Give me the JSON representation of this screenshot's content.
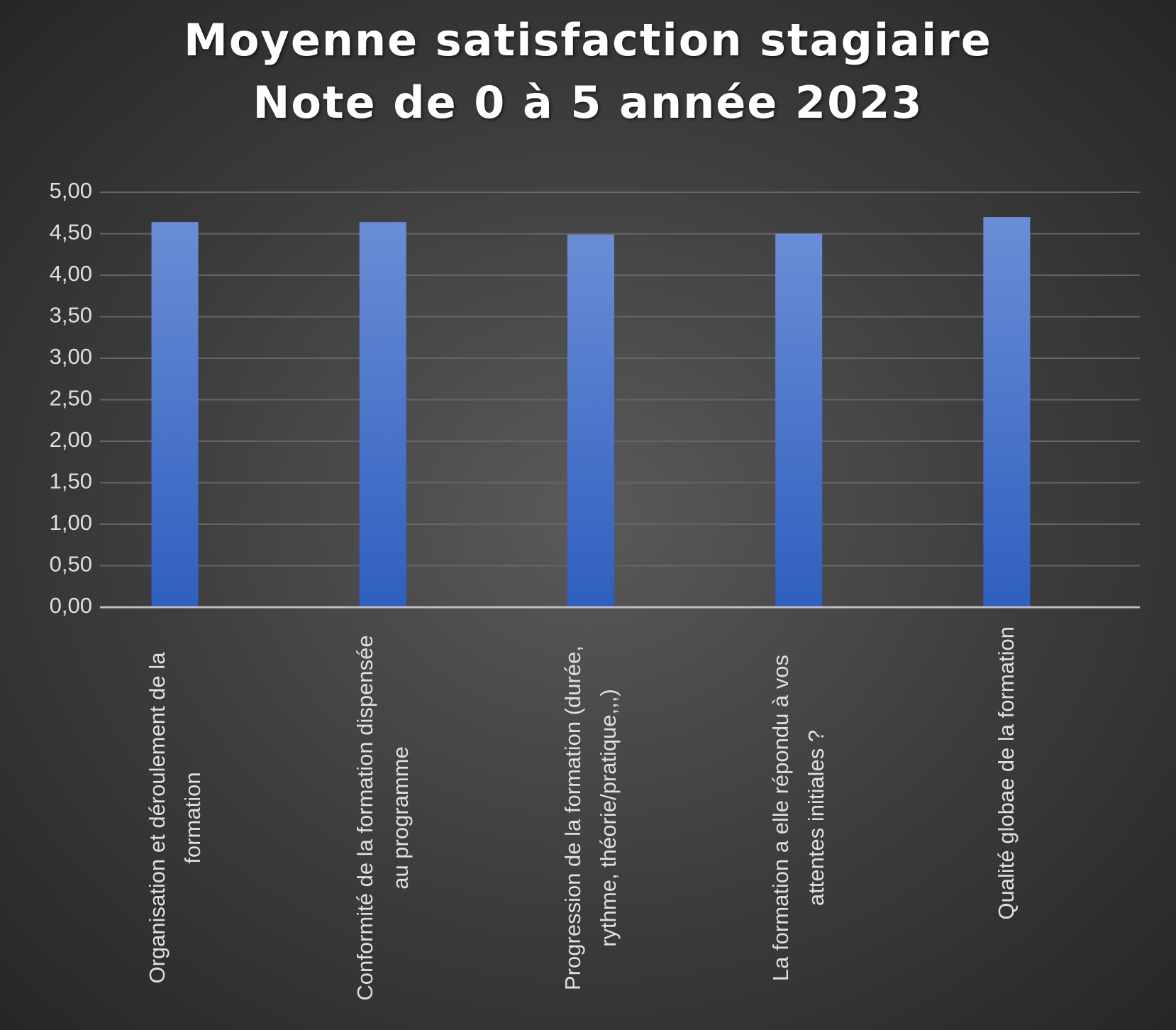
{
  "chart_data": {
    "type": "bar",
    "title": "Moyenne satisfaction stagiaire",
    "subtitle": "Note de 0 à 5 année 2023",
    "categories": [
      "Organisation et déroulement de la formation",
      "Conformité de la formation dispensée au programme",
      "Progression de la formation (durée, rythme, théorie/pratique,,,)",
      "La formation a elle répondu à vos attentes initiales ?",
      "Qualité globae de la formation"
    ],
    "values": [
      4.64,
      4.64,
      4.49,
      4.5,
      4.7
    ],
    "color": "#4472c4",
    "ylim": [
      0,
      5
    ],
    "yticks": [
      {
        "value": 0,
        "label": "0,00"
      },
      {
        "value": 0.5,
        "label": "0,50"
      },
      {
        "value": 1,
        "label": "1,00"
      },
      {
        "value": 1.5,
        "label": "1,50"
      },
      {
        "value": 2,
        "label": "2,00"
      },
      {
        "value": 2.5,
        "label": "2,50"
      },
      {
        "value": 3,
        "label": "3,00"
      },
      {
        "value": 3.5,
        "label": "3,50"
      },
      {
        "value": 4,
        "label": "4,00"
      },
      {
        "value": 4.5,
        "label": "4,50"
      },
      {
        "value": 5,
        "label": "5,00"
      }
    ],
    "grid": true
  }
}
